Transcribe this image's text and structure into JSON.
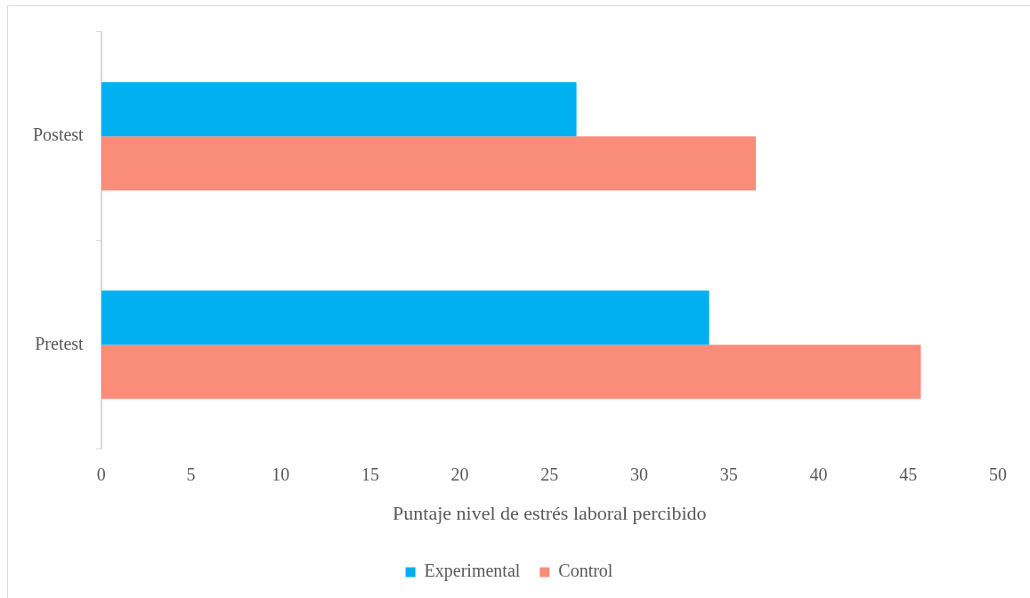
{
  "chart_data": {
    "type": "bar",
    "orientation": "horizontal",
    "categories": [
      "Postest",
      "Pretest"
    ],
    "series": [
      {
        "name": "Experimental",
        "color": "#00b0f0",
        "values": [
          26.5,
          33.9
        ]
      },
      {
        "name": "Control",
        "color": "#fa8c7a",
        "values": [
          36.5,
          45.7
        ]
      }
    ],
    "xlabel": "Puntaje nivel de estrés laboral percibido",
    "xlim": [
      0,
      50
    ],
    "xticks": [
      0,
      5,
      10,
      15,
      20,
      25,
      30,
      35,
      40,
      45,
      50
    ],
    "legend": "bottom"
  }
}
